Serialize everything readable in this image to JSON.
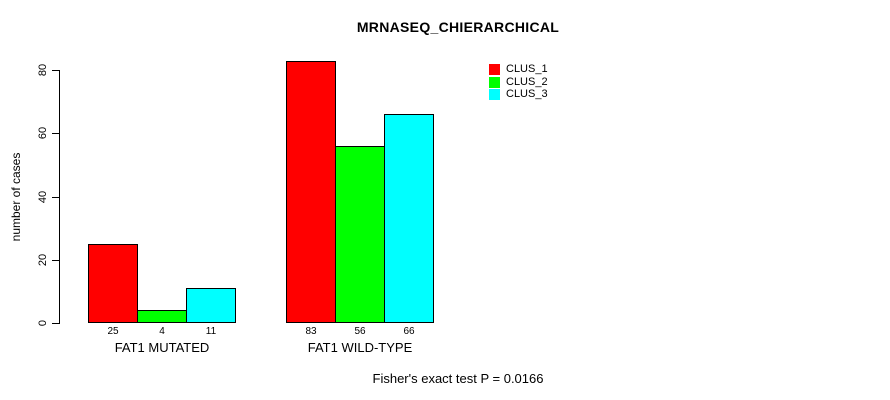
{
  "title": "MRNASEQ_CHIERARCHICAL",
  "y_axis": {
    "label": "number of cases",
    "ticks": [
      0,
      20,
      40,
      60,
      80
    ]
  },
  "footer": "Fisher's exact test P = 0.0166",
  "legend": {
    "items": [
      {
        "label": "CLUS_1",
        "color": "#FF0000"
      },
      {
        "label": "CLUS_2",
        "color": "#00FF00"
      },
      {
        "label": "CLUS_3",
        "color": "#00FFFF"
      }
    ]
  },
  "chart_data": {
    "type": "bar",
    "title": "MRNASEQ_CHIERARCHICAL",
    "categories": [
      "FAT1 MUTATED",
      "FAT1 WILD-TYPE"
    ],
    "series": [
      {
        "name": "CLUS_1",
        "color": "#FF0000",
        "values": [
          25,
          83
        ]
      },
      {
        "name": "CLUS_2",
        "color": "#00FF00",
        "values": [
          4,
          56
        ]
      },
      {
        "name": "CLUS_3",
        "color": "#00FFFF",
        "values": [
          11,
          66
        ]
      }
    ],
    "bar_value_labels": [
      [
        25,
        83
      ],
      [
        4,
        56
      ],
      [
        11,
        66
      ]
    ],
    "xlabel": "",
    "ylabel": "number of cases",
    "ylim": [
      0,
      84
    ],
    "yticks": [
      0,
      20,
      40,
      60,
      80
    ],
    "grid": false,
    "bar_border_color": "#000000",
    "legend_position": "top-right",
    "legend_entries": [
      "CLUS_1",
      "CLUS_2",
      "CLUS_3"
    ],
    "annotation": "Fisher's exact test P = 0.0166"
  }
}
